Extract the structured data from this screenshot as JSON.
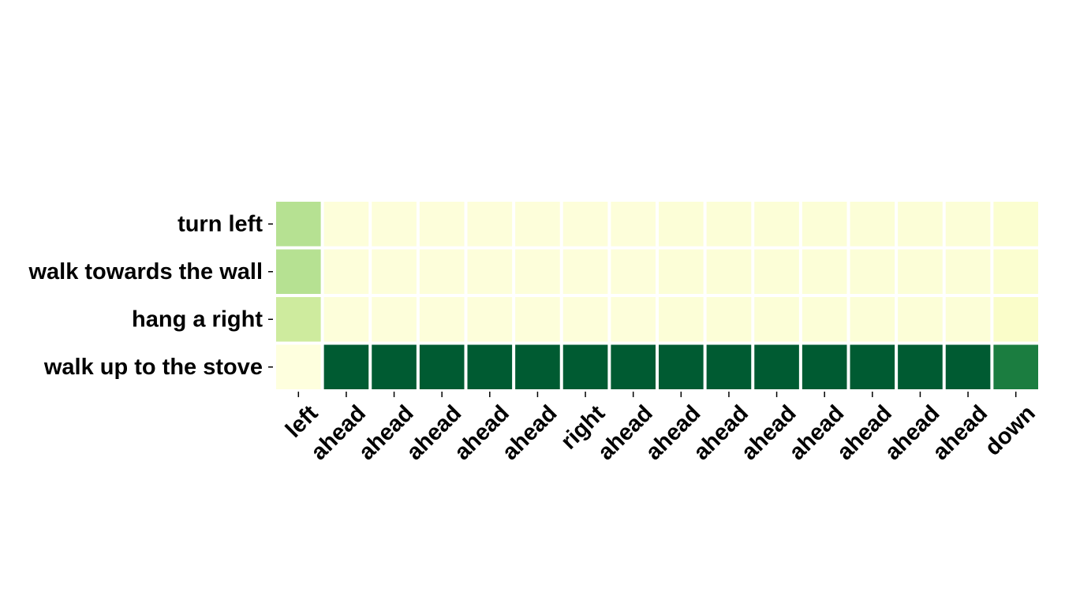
{
  "chart_data": {
    "type": "heatmap",
    "title": "",
    "xlabel": "",
    "ylabel": "",
    "x_labels": [
      "left",
      "ahead",
      "ahead",
      "ahead",
      "ahead",
      "ahead",
      "right",
      "ahead",
      "ahead",
      "ahead",
      "ahead",
      "ahead",
      "ahead",
      "ahead",
      "ahead",
      "down"
    ],
    "y_labels": [
      "turn left",
      "walk towards the wall",
      "hang a right",
      "walk up to the stove"
    ],
    "values": [
      [
        0.35,
        0.03,
        0.03,
        0.03,
        0.03,
        0.03,
        0.03,
        0.03,
        0.04,
        0.04,
        0.04,
        0.04,
        0.04,
        0.04,
        0.04,
        0.06
      ],
      [
        0.35,
        0.03,
        0.03,
        0.03,
        0.03,
        0.03,
        0.03,
        0.03,
        0.04,
        0.04,
        0.04,
        0.04,
        0.04,
        0.04,
        0.04,
        0.06
      ],
      [
        0.28,
        0.03,
        0.03,
        0.03,
        0.03,
        0.03,
        0.03,
        0.03,
        0.04,
        0.04,
        0.04,
        0.04,
        0.04,
        0.04,
        0.04,
        0.08
      ],
      [
        0.02,
        0.92,
        0.92,
        0.92,
        0.92,
        0.92,
        0.92,
        0.92,
        0.92,
        0.92,
        0.92,
        0.92,
        0.92,
        0.92,
        0.92,
        0.78
      ]
    ],
    "vmin": 0,
    "vmax": 1,
    "colormap": "YlGn",
    "colorbar": false,
    "grid": false,
    "cell_separator_color": "#ffffff"
  }
}
